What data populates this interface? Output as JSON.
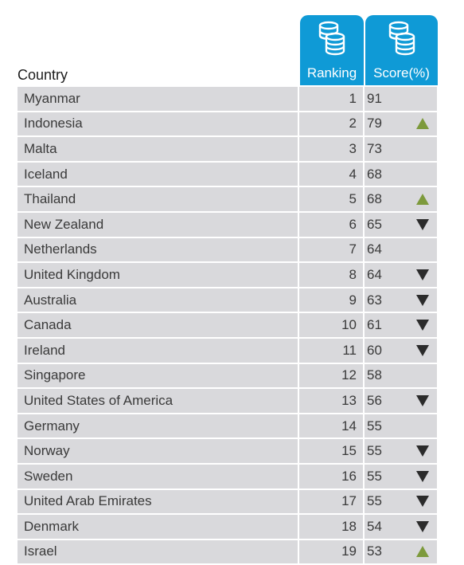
{
  "chart_data": {
    "type": "table",
    "headers": {
      "country": "Country",
      "ranking": "Ranking",
      "score": "Score(%)"
    },
    "header_icon": "coin-stack-icon",
    "colors": {
      "header_blue": "#0f9ad6",
      "row_gray": "#d9d9dc",
      "up": "#7d9a3c",
      "down": "#2b2b2b"
    },
    "rows": [
      {
        "country": "Myanmar",
        "ranking": "1",
        "score": "91",
        "trend": ""
      },
      {
        "country": "Indonesia",
        "ranking": "2",
        "score": "79",
        "trend": "up"
      },
      {
        "country": "Malta",
        "ranking": "3",
        "score": "73",
        "trend": ""
      },
      {
        "country": "Iceland",
        "ranking": "4",
        "score": "68",
        "trend": ""
      },
      {
        "country": "Thailand",
        "ranking": "5",
        "score": "68",
        "trend": "up"
      },
      {
        "country": "New Zealand",
        "ranking": "6",
        "score": "65",
        "trend": "down"
      },
      {
        "country": "Netherlands",
        "ranking": "7",
        "score": "64",
        "trend": ""
      },
      {
        "country": "United Kingdom",
        "ranking": "8",
        "score": "64",
        "trend": "down"
      },
      {
        "country": "Australia",
        "ranking": "9",
        "score": "63",
        "trend": "down"
      },
      {
        "country": "Canada",
        "ranking": "10",
        "score": "61",
        "trend": "down"
      },
      {
        "country": "Ireland",
        "ranking": "11",
        "score": "60",
        "trend": "down"
      },
      {
        "country": "Singapore",
        "ranking": "12",
        "score": "58",
        "trend": ""
      },
      {
        "country": "United States of America",
        "ranking": "13",
        "score": "56",
        "trend": "down"
      },
      {
        "country": "Germany",
        "ranking": "14",
        "score": "55",
        "trend": ""
      },
      {
        "country": "Norway",
        "ranking": "15",
        "score": "55",
        "trend": "down"
      },
      {
        "country": "Sweden",
        "ranking": "16",
        "score": "55",
        "trend": "down"
      },
      {
        "country": "United Arab Emirates",
        "ranking": "17",
        "score": "55",
        "trend": "down"
      },
      {
        "country": "Denmark",
        "ranking": "18",
        "score": "54",
        "trend": "down"
      },
      {
        "country": "Israel",
        "ranking": "19",
        "score": "53",
        "trend": "up"
      }
    ]
  }
}
